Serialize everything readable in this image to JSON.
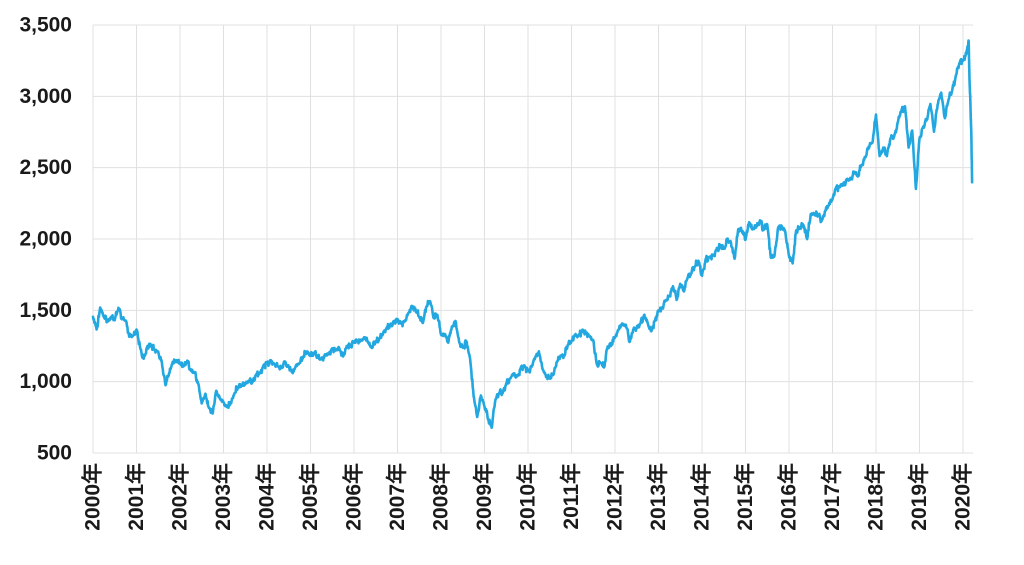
{
  "page": {
    "background_color": "#ffffff"
  },
  "chart_data": {
    "type": "line",
    "title": "",
    "subtitle": "",
    "xlabel": "",
    "ylabel": "",
    "legend": "none",
    "grid": true,
    "grid_color": "#e0e0e0",
    "text_color": "#1a1a1a",
    "xlim": [
      2000,
      2020.23
    ],
    "ylim": [
      500,
      3500
    ],
    "x_tick_labels": [
      "2000年",
      "2001年",
      "2002年",
      "2003年",
      "2004年",
      "2005年",
      "2006年",
      "2007年",
      "2008年",
      "2009年",
      "2010年",
      "2011年",
      "2012年",
      "2013年",
      "2014年",
      "2015年",
      "2016年",
      "2017年",
      "2018年",
      "2019年",
      "2020年"
    ],
    "x_tick_years": [
      2000,
      2001,
      2002,
      2003,
      2004,
      2005,
      2006,
      2007,
      2008,
      2009,
      2010,
      2011,
      2012,
      2013,
      2014,
      2015,
      2016,
      2017,
      2018,
      2019,
      2020
    ],
    "y_tick_labels": [
      "500",
      "1,000",
      "1,500",
      "2,000",
      "2,500",
      "3,000",
      "3,500"
    ],
    "y_tick_values": [
      500,
      1000,
      1500,
      2000,
      2500,
      3000,
      3500
    ],
    "series": [
      {
        "name": "stock-index-price",
        "color": "#22a7e0",
        "start_year": 2000,
        "points_per_year": 12,
        "values": [
          1455,
          1366,
          1520,
          1452,
          1421,
          1455,
          1431,
          1518,
          1437,
          1429,
          1315,
          1320,
          1366,
          1240,
          1160,
          1249,
          1256,
          1224,
          1211,
          1134,
          975,
          1060,
          1139,
          1148,
          1130,
          1107,
          1147,
          1077,
          1067,
          990,
          848,
          916,
          815,
          777,
          936,
          880,
          856,
          822,
          848,
          917,
          964,
          975,
          990,
          1008,
          996,
          1051,
          1058,
          1112,
          1131,
          1145,
          1126,
          1107,
          1096,
          1141,
          1102,
          1064,
          1115,
          1130,
          1174,
          1212,
          1181,
          1204,
          1181,
          1157,
          1192,
          1191,
          1234,
          1220,
          1229,
          1177,
          1249,
          1248,
          1280,
          1281,
          1295,
          1311,
          1270,
          1236,
          1277,
          1304,
          1336,
          1378,
          1401,
          1418,
          1438,
          1407,
          1421,
          1482,
          1531,
          1503,
          1455,
          1411,
          1527,
          1565,
          1445,
          1468,
          1330,
          1331,
          1273,
          1386,
          1425,
          1280,
          1239,
          1283,
          1166,
          899,
          752,
          903,
          826,
          735,
          677,
          873,
          919,
          919,
          987,
          1021,
          1057,
          1036,
          1096,
          1115,
          1074,
          1104,
          1169,
          1212,
          1089,
          1031,
          1022,
          1049,
          1141,
          1183,
          1181,
          1258,
          1286,
          1327,
          1326,
          1364,
          1345,
          1321,
          1292,
          1120,
          1131,
          1100,
          1247,
          1258,
          1312,
          1366,
          1408,
          1398,
          1278,
          1362,
          1379,
          1407,
          1466,
          1412,
          1353,
          1426,
          1498,
          1515,
          1569,
          1598,
          1669,
          1573,
          1686,
          1633,
          1725,
          1757,
          1806,
          1848,
          1742,
          1859,
          1872,
          1884,
          1924,
          1960,
          1931,
          2003,
          1972,
          1862,
          2068,
          2059,
          1995,
          2117,
          2068,
          2086,
          2131,
          2063,
          2104,
          1868,
          1882,
          2079,
          2090,
          2044,
          1880,
          1829,
          2060,
          2081,
          2097,
          1999,
          2174,
          2171,
          2168,
          2126,
          2199,
          2239,
          2279,
          2364,
          2363,
          2384,
          2412,
          2423,
          2470,
          2438,
          2519,
          2575,
          2648,
          2674,
          2872,
          2581,
          2641,
          2581,
          2705,
          2718,
          2816,
          2902,
          2930,
          2641,
          2760,
          2351,
          2704,
          2785,
          2834,
          2946,
          2752,
          2942,
          3026,
          2847,
          2977,
          3038,
          3141,
          3231
        ],
        "tail_points": [
          [
            2020.02,
            3258
          ],
          [
            2020.06,
            3288
          ],
          [
            2020.1,
            3338
          ],
          [
            2020.13,
            3386
          ],
          [
            2020.15,
            3116
          ],
          [
            2020.17,
            2954
          ],
          [
            2020.19,
            2746
          ],
          [
            2020.21,
            2398
          ]
        ]
      }
    ]
  }
}
